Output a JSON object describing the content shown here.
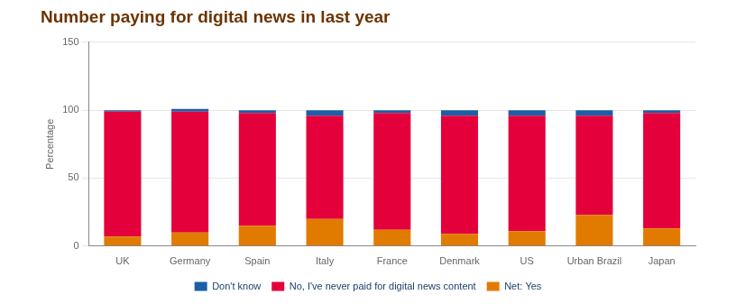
{
  "chart_data": {
    "type": "bar",
    "title": "Number paying for digital news in last year",
    "y_label": "Percentage",
    "categories": [
      "UK",
      "Germany",
      "Spain",
      "Italy",
      "France",
      "Denmark",
      "US",
      "Urban Brazil",
      "Japan"
    ],
    "series": [
      {
        "name": "Net: Yes",
        "color": "#e07b00",
        "values": [
          7,
          10,
          15,
          20,
          12,
          9,
          11,
          23,
          13
        ]
      },
      {
        "name": "No, I've never paid for digital news content",
        "color": "#e4003b",
        "values": [
          92,
          89,
          83,
          76,
          86,
          87,
          85,
          73,
          85
        ]
      },
      {
        "name": "Don't know",
        "color": "#1c5ea8",
        "values": [
          1,
          2,
          2,
          4,
          2,
          4,
          4,
          4,
          2
        ]
      }
    ],
    "stacked": true,
    "ylim": [
      0,
      150
    ],
    "yticks": [
      0,
      50,
      100,
      150
    ],
    "grid": true,
    "legend": "bottom"
  }
}
